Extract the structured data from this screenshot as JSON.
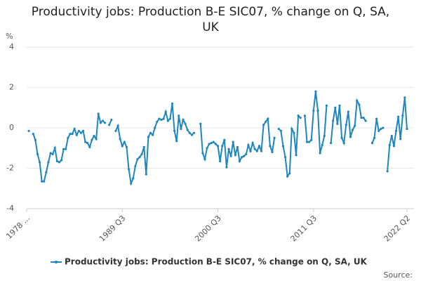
{
  "chart_data": {
    "type": "line",
    "title": "Productivity jobs: Production B-E SIC07, % change on Q, SA, UK",
    "y_label": "%",
    "source": "Source:",
    "ylim": [
      -4,
      4
    ],
    "yticks": [
      -4,
      -2,
      0,
      2,
      4
    ],
    "grid": true,
    "categories": [
      "1978 ...",
      null,
      null,
      null,
      null,
      null,
      null,
      null,
      null,
      null,
      null,
      null,
      null,
      null,
      null,
      null,
      null,
      null,
      null,
      null,
      null,
      null,
      null,
      null,
      null,
      null,
      null,
      null,
      null,
      null,
      null,
      null,
      null,
      null,
      null,
      null,
      null,
      null,
      null,
      null,
      null,
      null,
      null,
      null,
      "1989 Q3",
      null,
      null,
      null,
      null,
      null,
      null,
      null,
      null,
      null,
      null,
      null,
      null,
      null,
      null,
      null,
      null,
      null,
      null,
      null,
      null,
      null,
      null,
      null,
      null,
      null,
      null,
      null,
      null,
      null,
      null,
      null,
      null,
      null,
      null,
      null,
      null,
      null,
      null,
      null,
      null,
      null,
      null,
      null,
      "2000 Q3",
      null,
      null,
      null,
      null,
      null,
      null,
      null,
      null,
      null,
      null,
      null,
      null,
      null,
      null,
      null,
      null,
      null,
      null,
      null,
      null,
      null,
      null,
      null,
      null,
      null,
      null,
      null,
      null,
      null,
      null,
      null,
      null,
      null,
      null,
      null,
      null,
      null,
      null,
      null,
      null,
      null,
      null,
      null,
      "2011 Q3",
      null,
      null,
      null,
      null,
      null,
      null,
      null,
      null,
      null,
      null,
      null,
      null,
      null,
      null,
      null,
      null,
      null,
      null,
      null,
      null,
      null,
      null,
      null,
      null,
      null,
      null,
      null,
      null,
      null,
      null,
      null,
      null,
      null,
      null,
      null,
      null,
      null,
      null,
      null,
      null,
      null,
      null,
      "2022 Q2"
    ],
    "series": [
      {
        "name": "Productivity jobs: Production B-E SIC07, % change on Q, SA, UK",
        "color": "#1f86bd",
        "values": [
          null,
          -0.15,
          null,
          -0.3,
          -0.6,
          -1.3,
          -1.7,
          -2.65,
          -2.65,
          -2.2,
          -1.7,
          -1.25,
          -1.3,
          -1.0,
          -1.65,
          -1.7,
          -1.6,
          -1.05,
          -1.05,
          -0.5,
          -0.3,
          -0.3,
          -0.05,
          -0.35,
          -0.15,
          -0.25,
          -0.15,
          -0.7,
          -0.75,
          -0.95,
          -0.6,
          -0.4,
          -0.55,
          0.7,
          0.25,
          0.35,
          0.25,
          null,
          0.15,
          0.4,
          null,
          -0.15,
          0.1,
          -0.55,
          -0.9,
          -0.7,
          -0.95,
          -2.05,
          -2.75,
          -2.5,
          -1.9,
          -1.55,
          -1.45,
          -1.3,
          -0.95,
          -2.3,
          -0.45,
          -0.25,
          -0.35,
          0.0,
          0.3,
          0.45,
          0.4,
          0.45,
          0.8,
          0.35,
          0.45,
          1.2,
          -0.15,
          -0.65,
          0.6,
          -0.05,
          0.4,
          0.2,
          -0.1,
          -0.25,
          -0.35,
          -0.25,
          null,
          null,
          0.2,
          -1.25,
          -1.55,
          -1.0,
          -0.8,
          -0.75,
          -0.7,
          -0.8,
          -0.9,
          -1.65,
          -0.9,
          -0.6,
          -1.95,
          -1.05,
          -1.4,
          -0.7,
          -1.35,
          -0.95,
          -1.65,
          -1.45,
          -1.4,
          -1.3,
          -0.85,
          -1.15,
          -0.75,
          -1.05,
          -1.15,
          -0.9,
          -1.15,
          0.15,
          0.3,
          0.45,
          -0.9,
          -1.2,
          -0.5,
          null,
          -0.05,
          -0.15,
          -0.9,
          -1.45,
          -2.4,
          -2.25,
          -0.05,
          -0.25,
          -1.35,
          0.6,
          0.5,
          null,
          0.6,
          -0.7,
          -0.7,
          -0.6,
          0.85,
          1.8,
          0.85,
          -1.25,
          -0.85,
          -0.4,
          1.1,
          null,
          -0.75,
          0.35,
          1.0,
          0.2,
          1.1,
          -0.5,
          -0.75,
          0.15,
          0.8,
          -0.45,
          -0.1,
          0.1,
          1.35,
          1.15,
          0.5,
          0.5,
          0.35,
          null,
          null,
          -0.75,
          -0.5,
          0.45,
          -0.15,
          -0.05,
          0.0,
          null,
          -2.15,
          -0.85,
          -0.4,
          -0.9,
          -0.15,
          0.55,
          -0.55,
          0.6,
          1.5,
          -0.05
        ]
      }
    ]
  }
}
